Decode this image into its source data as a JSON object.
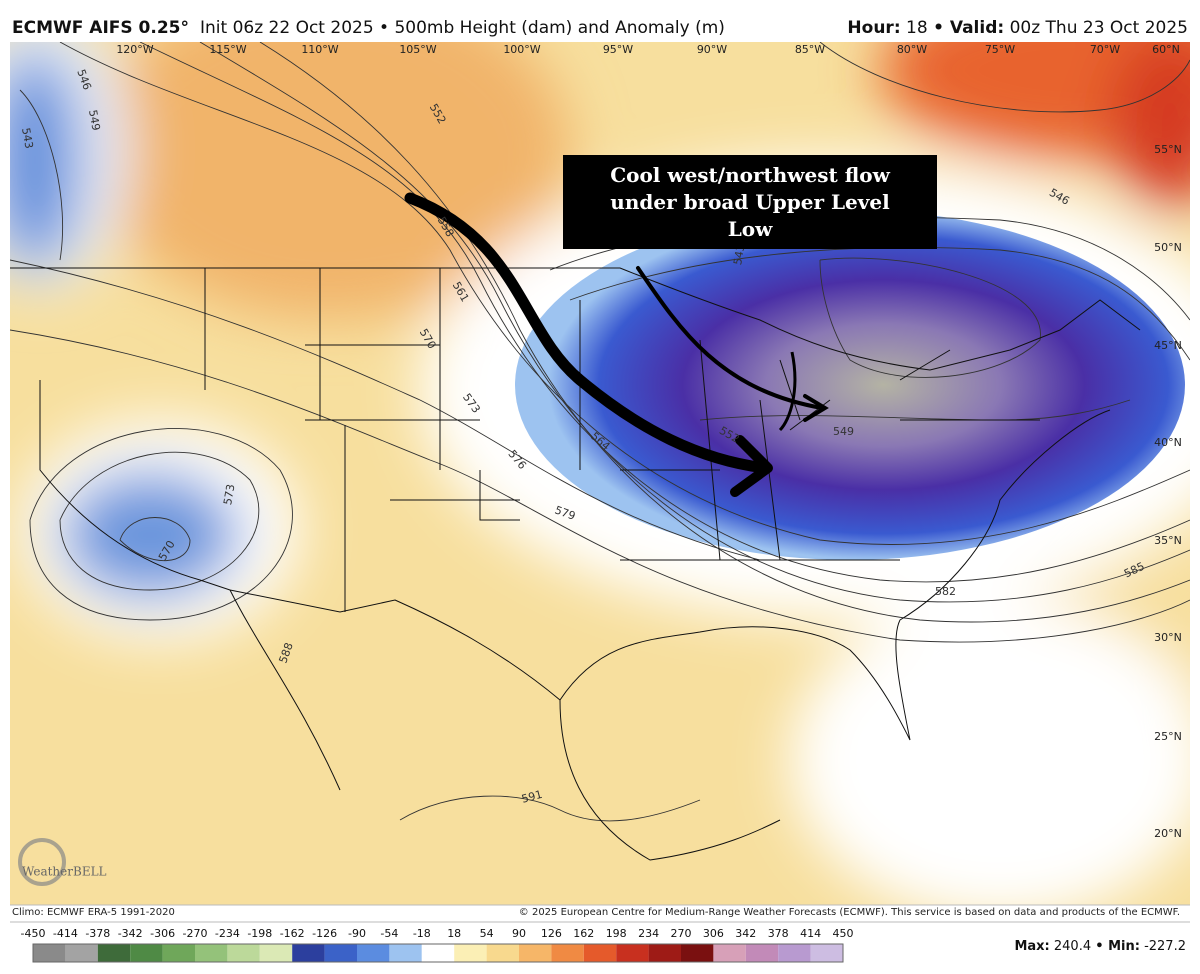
{
  "header": {
    "model": "ECMWF AIFS 0.25°",
    "subtitle": "Init 06z 22 Oct 2025 • 500mb Height (dam) and Anomaly (m)",
    "hour_label": "Hour:",
    "hour": 18,
    "valid_label": "• Valid:",
    "valid": "00z Thu 23 Oct 2025"
  },
  "map": {
    "longitudes": [
      "120°W",
      "115°W",
      "110°W",
      "105°W",
      "100°W",
      "95°W",
      "90°W",
      "85°W",
      "80°W",
      "75°W",
      "70°W",
      "60°N"
    ],
    "latitudes": [
      "55°N",
      "50°N",
      "45°N",
      "40°N",
      "35°N",
      "30°N",
      "25°N",
      "20°N"
    ],
    "contours": [
      546,
      549,
      543,
      552,
      558,
      561,
      570,
      573,
      576,
      579,
      564,
      552,
      549,
      543,
      546,
      582,
      585,
      591,
      588,
      570,
      573
    ],
    "annotation": "Cool west/northwest flow under broad Upper Level Low",
    "logo": "WeatherBELL"
  },
  "footer": {
    "climo": "Climo: ECMWF ERA-5 1991-2020",
    "copyright": "© 2025 European Centre for Medium-Range Weather Forecasts (ECMWF). This service is based on data and products of the ECMWF."
  },
  "colorbar": {
    "range": [
      -450,
      450
    ],
    "ticks": [
      -450,
      -414,
      -378,
      -342,
      -306,
      -270,
      -234,
      -198,
      -162,
      -126,
      -90,
      -54,
      -18,
      18,
      54,
      90,
      126,
      162,
      198,
      234,
      270,
      306,
      342,
      378,
      414,
      450
    ],
    "colors": [
      "#8a8a8a",
      "#a3a3a3",
      "#3e6b3a",
      "#4f8a45",
      "#6fa75a",
      "#94c27a",
      "#bcd99a",
      "#dbe9b5",
      "#2c3f9e",
      "#3b62c8",
      "#5b8ce0",
      "#9dc3f0",
      "#ffffff",
      "#fbefb5",
      "#f8d98e",
      "#f6b668",
      "#f08a43",
      "#e55a2b",
      "#c8301f",
      "#9e1b16",
      "#7a1010",
      "#d7a0b8",
      "#c28ab8",
      "#b89ad0",
      "#cdbde2"
    ]
  },
  "stats": {
    "max_label": "Max:",
    "max": 240.4,
    "min_label": "• Min:",
    "min": -227.2
  }
}
